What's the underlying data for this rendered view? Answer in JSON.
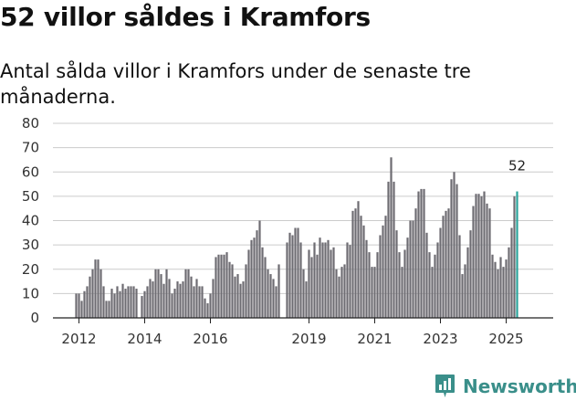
{
  "title": "52 villor såldes i Kramfors",
  "subtitle": "Antal sålda villor i Kramfors under de senaste tre månaderna.",
  "brand": {
    "name": "Newsworthy",
    "color": "#3a8f8a",
    "icon": "newsworthy-logo-icon"
  },
  "colors": {
    "bar": "#6d6c72",
    "highlight": "#2aa39b",
    "axis": "#222222",
    "grid": "#cccccc"
  },
  "chart_data": {
    "type": "bar",
    "title": "52 villor såldes i Kramfors",
    "xlabel": "",
    "ylabel": "",
    "ylim": [
      0,
      80
    ],
    "yticks": [
      "0",
      "10",
      "20",
      "30",
      "40",
      "50",
      "60",
      "70",
      "80"
    ],
    "xticks": [
      "2012",
      "2014",
      "2016",
      "2019",
      "2021",
      "2023",
      "2025"
    ],
    "start": "2011-12",
    "values": [
      10,
      10,
      7,
      11,
      13,
      17,
      20,
      24,
      24,
      20,
      13,
      7,
      7,
      12,
      10,
      13,
      11,
      14,
      12,
      13,
      13,
      13,
      12,
      null,
      9,
      11,
      13,
      16,
      15,
      20,
      20,
      18,
      14,
      20,
      16,
      10,
      12,
      15,
      14,
      15,
      20,
      20,
      17,
      13,
      16,
      13,
      13,
      8,
      6,
      10,
      16,
      25,
      26,
      26,
      26,
      27,
      23,
      22,
      17,
      18,
      14,
      15,
      22,
      28,
      32,
      33,
      36,
      40,
      29,
      25,
      20,
      18,
      16,
      13,
      22,
      null,
      null,
      31,
      35,
      34,
      37,
      37,
      31,
      20,
      15,
      28,
      25,
      31,
      26,
      33,
      31,
      31,
      32,
      28,
      29,
      20,
      17,
      21,
      22,
      31,
      30,
      44,
      45,
      48,
      42,
      38,
      32,
      27,
      21,
      21,
      27,
      34,
      38,
      42,
      56,
      66,
      56,
      36,
      27,
      21,
      28,
      33,
      40,
      40,
      45,
      52,
      53,
      53,
      35,
      27,
      21,
      26,
      31,
      37,
      42,
      44,
      45,
      57,
      60,
      55,
      34,
      18,
      22,
      29,
      36,
      46,
      51,
      51,
      50,
      52,
      47,
      45,
      26,
      23,
      20,
      25,
      21,
      24,
      29,
      37,
      50,
      52
    ],
    "highlight_last": true,
    "last_value_label": "52"
  }
}
